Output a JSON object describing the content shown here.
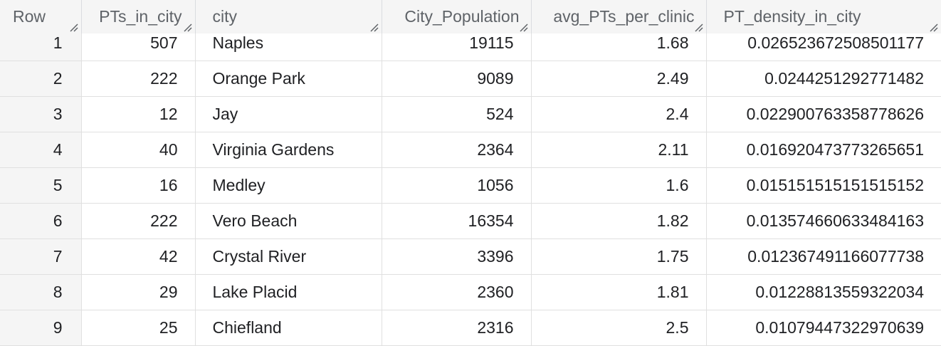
{
  "columns": [
    {
      "key": "row",
      "label": "Row"
    },
    {
      "key": "pts",
      "label": "PTs_in_city"
    },
    {
      "key": "city",
      "label": "city"
    },
    {
      "key": "pop",
      "label": "City_Population"
    },
    {
      "key": "avg",
      "label": "avg_PTs_per_clinic"
    },
    {
      "key": "density",
      "label": "PT_density_in_city"
    }
  ],
  "rows": [
    {
      "row": "1",
      "pts": "507",
      "city": "Naples",
      "pop": "19115",
      "avg": "1.68",
      "density": "0.026523672508501177"
    },
    {
      "row": "2",
      "pts": "222",
      "city": "Orange Park",
      "pop": "9089",
      "avg": "2.49",
      "density": "0.0244251292771482"
    },
    {
      "row": "3",
      "pts": "12",
      "city": "Jay",
      "pop": "524",
      "avg": "2.4",
      "density": "0.022900763358778626"
    },
    {
      "row": "4",
      "pts": "40",
      "city": "Virginia Gardens",
      "pop": "2364",
      "avg": "2.11",
      "density": "0.016920473773265651"
    },
    {
      "row": "5",
      "pts": "16",
      "city": "Medley",
      "pop": "1056",
      "avg": "1.6",
      "density": "0.015151515151515152"
    },
    {
      "row": "6",
      "pts": "222",
      "city": "Vero Beach",
      "pop": "16354",
      "avg": "1.82",
      "density": "0.013574660633484163"
    },
    {
      "row": "7",
      "pts": "42",
      "city": "Crystal River",
      "pop": "3396",
      "avg": "1.75",
      "density": "0.012367491166077738"
    },
    {
      "row": "8",
      "pts": "29",
      "city": "Lake Placid",
      "pop": "2360",
      "avg": "1.81",
      "density": "0.01228813559322034"
    },
    {
      "row": "9",
      "pts": "25",
      "city": "Chiefland",
      "pop": "2316",
      "avg": "2.5",
      "density": "0.01079447322970639"
    }
  ],
  "icons": {
    "column_resize": "resize-handle-icon"
  }
}
